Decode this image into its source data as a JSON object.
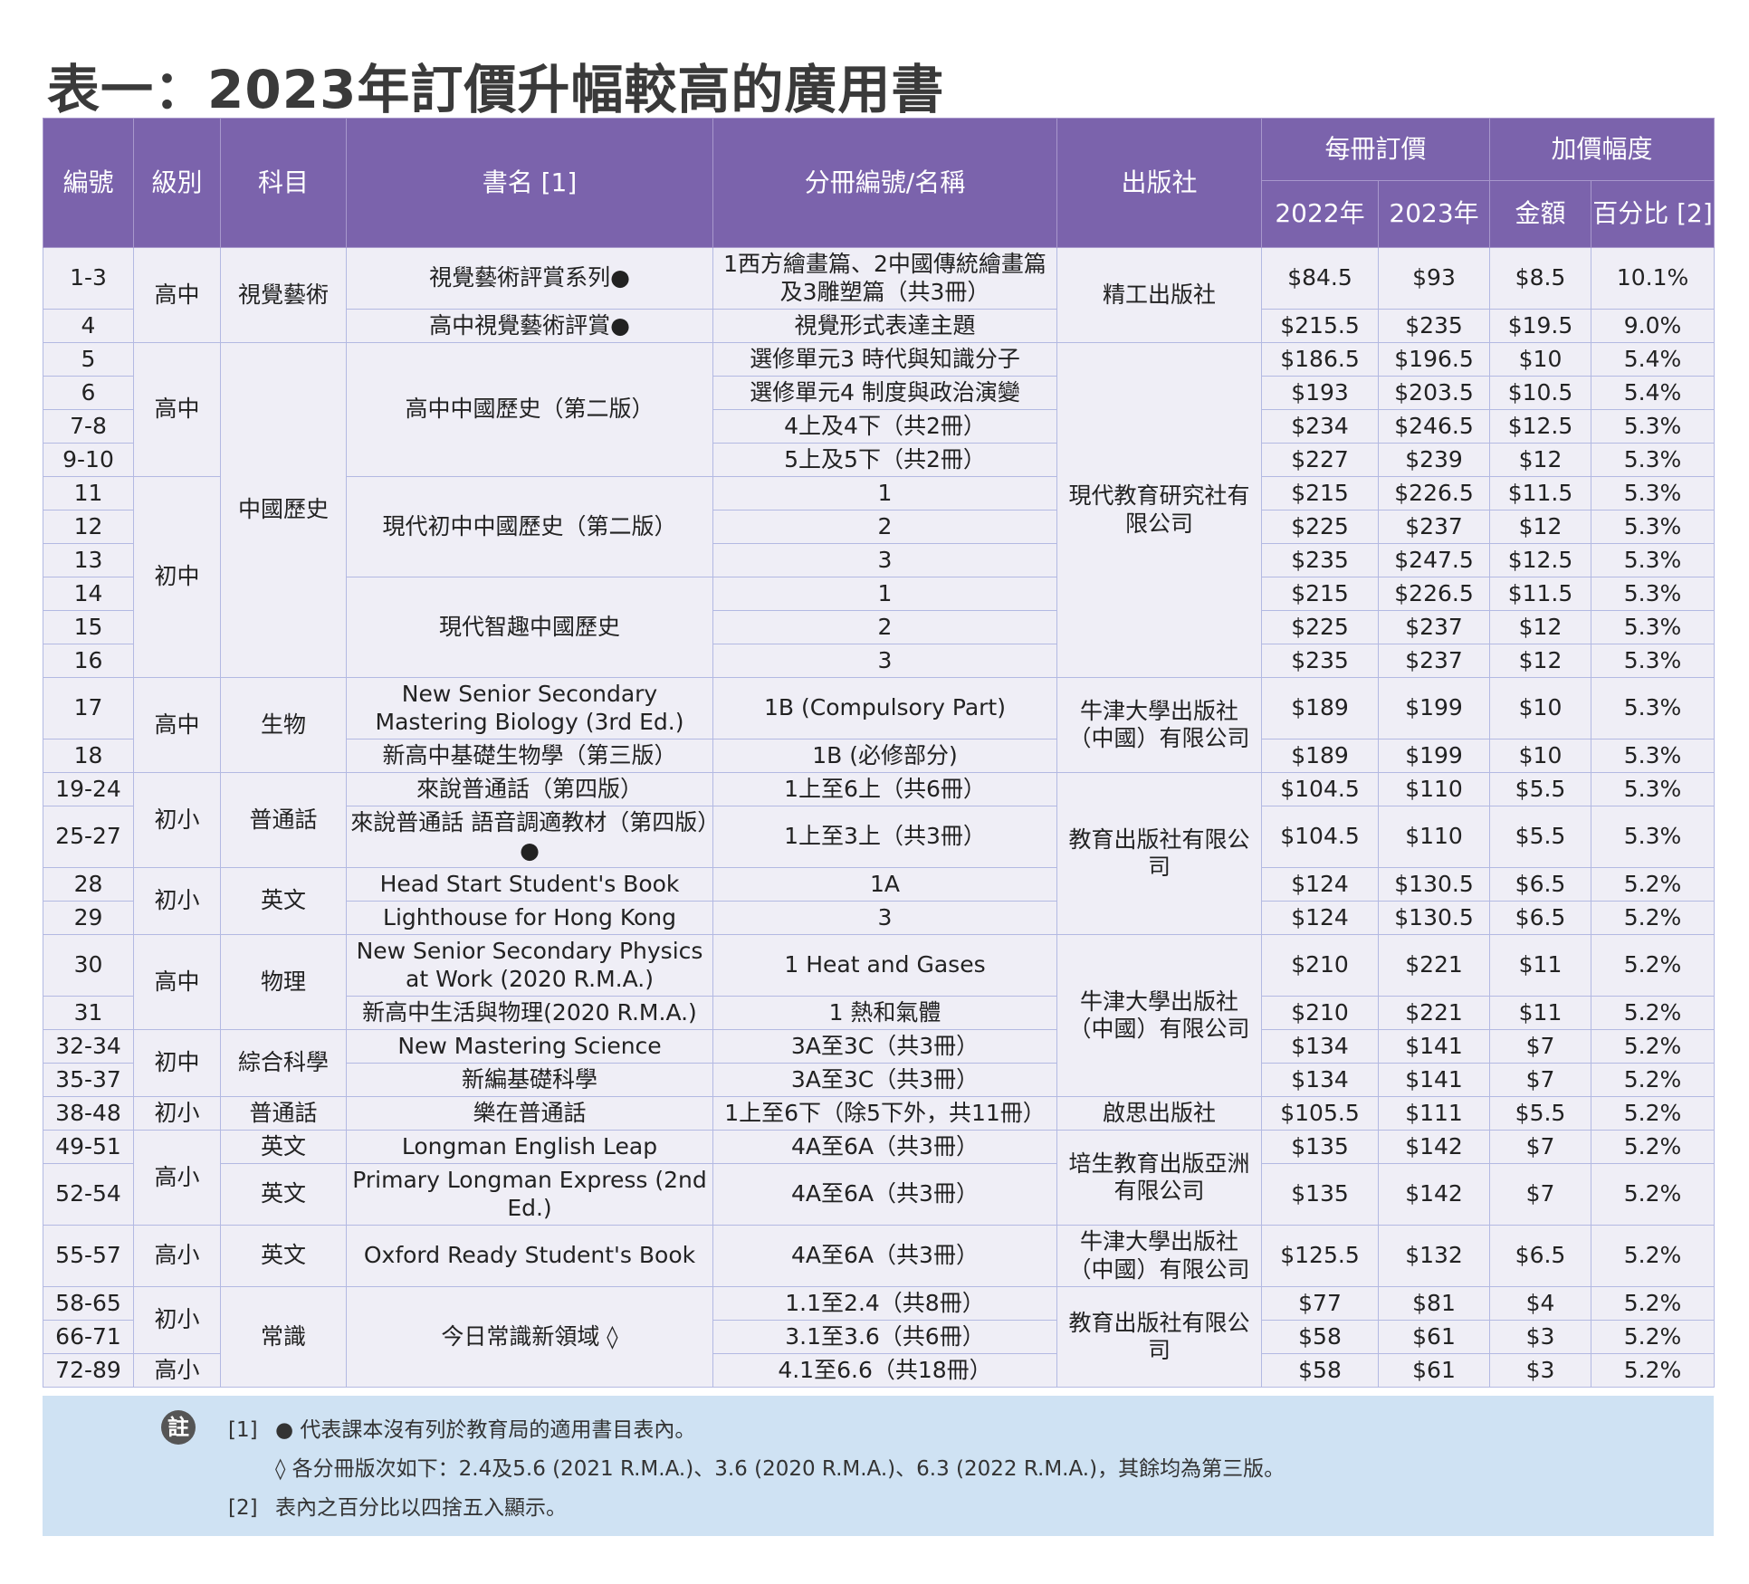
{
  "title": "表一：2023年訂價升幅較高的廣用書",
  "headers": {
    "id": "編號",
    "level": "級別",
    "subject": "科目",
    "book": "書名 [1]",
    "volume": "分冊編號/名稱",
    "publisher": "出版社",
    "price": "每冊訂價",
    "increase": "加價幅度",
    "y2022": "2022年",
    "y2023": "2023年",
    "amount": "金額",
    "percent": "百分比 [2]"
  },
  "rows": [
    {
      "id": "1-3",
      "level": "高中",
      "subject": "視覺藝術",
      "book": "視覺藝術評賞系列●",
      "volume": "1西方繪畫篇、2中國傳統繪畫篇及3雕塑篇（共3冊）",
      "publisher": "精工出版社",
      "p2022": "$84.5",
      "p2023": "$93",
      "amount": "$8.5",
      "percent": "10.1%"
    },
    {
      "id": "4",
      "book": "高中視覺藝術評賞●",
      "volume": "視覺形式表達主題",
      "p2022": "$215.5",
      "p2023": "$235",
      "amount": "$19.5",
      "percent": "9.0%"
    },
    {
      "id": "5",
      "level": "高中",
      "subject": "中國歷史",
      "book": "高中中國歷史（第二版）",
      "volume": "選修單元3 時代與知識分子",
      "publisher": "現代教育研究社有限公司",
      "p2022": "$186.5",
      "p2023": "$196.5",
      "amount": "$10",
      "percent": "5.4%"
    },
    {
      "id": "6",
      "volume": "選修單元4 制度與政治演變",
      "p2022": "$193",
      "p2023": "$203.5",
      "amount": "$10.5",
      "percent": "5.4%"
    },
    {
      "id": "7-8",
      "volume": "4上及4下（共2冊）",
      "p2022": "$234",
      "p2023": "$246.5",
      "amount": "$12.5",
      "percent": "5.3%"
    },
    {
      "id": "9-10",
      "volume": "5上及5下（共2冊）",
      "p2022": "$227",
      "p2023": "$239",
      "amount": "$12",
      "percent": "5.3%"
    },
    {
      "id": "11",
      "level": "初中",
      "book": "現代初中中國歷史（第二版）",
      "volume": "1",
      "p2022": "$215",
      "p2023": "$226.5",
      "amount": "$11.5",
      "percent": "5.3%"
    },
    {
      "id": "12",
      "volume": "2",
      "p2022": "$225",
      "p2023": "$237",
      "amount": "$12",
      "percent": "5.3%"
    },
    {
      "id": "13",
      "volume": "3",
      "p2022": "$235",
      "p2023": "$247.5",
      "amount": "$12.5",
      "percent": "5.3%"
    },
    {
      "id": "14",
      "book": "現代智趣中國歷史",
      "volume": "1",
      "p2022": "$215",
      "p2023": "$226.5",
      "amount": "$11.5",
      "percent": "5.3%"
    },
    {
      "id": "15",
      "volume": "2",
      "p2022": "$225",
      "p2023": "$237",
      "amount": "$12",
      "percent": "5.3%"
    },
    {
      "id": "16",
      "volume": "3",
      "p2022": "$235",
      "p2023": "$237",
      "amount": "$12",
      "percent": "5.3%"
    },
    {
      "id": "17",
      "level": "高中",
      "subject": "生物",
      "book": "New Senior Secondary Mastering Biology (3rd Ed.)",
      "volume": "1B (Compulsory Part)",
      "publisher": "牛津大學出版社（中國）有限公司",
      "p2022": "$189",
      "p2023": "$199",
      "amount": "$10",
      "percent": "5.3%"
    },
    {
      "id": "18",
      "book": "新高中基礎生物學（第三版）",
      "volume": "1B (必修部分)",
      "p2022": "$189",
      "p2023": "$199",
      "amount": "$10",
      "percent": "5.3%"
    },
    {
      "id": "19-24",
      "level": "初小",
      "subject": "普通話",
      "book": "來說普通話（第四版）",
      "volume": "1上至6上（共6冊）",
      "publisher": "教育出版社有限公司",
      "p2022": "$104.5",
      "p2023": "$110",
      "amount": "$5.5",
      "percent": "5.3%"
    },
    {
      "id": "25-27",
      "book": "來說普通話 語音調適教材（第四版）●",
      "volume": "1上至3上（共3冊）",
      "p2022": "$104.5",
      "p2023": "$110",
      "amount": "$5.5",
      "percent": "5.3%"
    },
    {
      "id": "28",
      "level": "初小",
      "subject": "英文",
      "book": "Head Start Student's Book",
      "volume": "1A",
      "p2022": "$124",
      "p2023": "$130.5",
      "amount": "$6.5",
      "percent": "5.2%"
    },
    {
      "id": "29",
      "book": "Lighthouse for Hong Kong",
      "volume": "3",
      "p2022": "$124",
      "p2023": "$130.5",
      "amount": "$6.5",
      "percent": "5.2%"
    },
    {
      "id": "30",
      "level": "高中",
      "subject": "物理",
      "book": "New Senior Secondary Physics at Work (2020 R.M.A.)",
      "volume": "1 Heat and Gases",
      "publisher": "牛津大學出版社（中國）有限公司",
      "p2022": "$210",
      "p2023": "$221",
      "amount": "$11",
      "percent": "5.2%"
    },
    {
      "id": "31",
      "book": "新高中生活與物理(2020 R.M.A.)",
      "volume": "1 熱和氣體",
      "p2022": "$210",
      "p2023": "$221",
      "amount": "$11",
      "percent": "5.2%"
    },
    {
      "id": "32-34",
      "level": "初中",
      "subject": "綜合科學",
      "book": "New Mastering Science",
      "volume": "3A至3C（共3冊）",
      "p2022": "$134",
      "p2023": "$141",
      "amount": "$7",
      "percent": "5.2%"
    },
    {
      "id": "35-37",
      "book": "新編基礎科學",
      "volume": "3A至3C（共3冊）",
      "p2022": "$134",
      "p2023": "$141",
      "amount": "$7",
      "percent": "5.2%"
    },
    {
      "id": "38-48",
      "level": "初小",
      "subject": "普通話",
      "book": "樂在普通話",
      "volume": "1上至6下（除5下外，共11冊）",
      "publisher": "啟思出版社",
      "p2022": "$105.5",
      "p2023": "$111",
      "amount": "$5.5",
      "percent": "5.2%"
    },
    {
      "id": "49-51",
      "level": "高小",
      "subject": "英文",
      "book": "Longman English Leap",
      "volume": "4A至6A（共3冊）",
      "publisher": "培生教育出版亞洲有限公司",
      "p2022": "$135",
      "p2023": "$142",
      "amount": "$7",
      "percent": "5.2%"
    },
    {
      "id": "52-54",
      "subject": "英文",
      "book": "Primary Longman Express (2nd Ed.)",
      "volume": "4A至6A（共3冊）",
      "p2022": "$135",
      "p2023": "$142",
      "amount": "$7",
      "percent": "5.2%"
    },
    {
      "id": "55-57",
      "level": "高小",
      "subject": "英文",
      "book": "Oxford Ready Student's Book",
      "volume": "4A至6A（共3冊）",
      "publisher": "牛津大學出版社（中國）有限公司",
      "p2022": "$125.5",
      "p2023": "$132",
      "amount": "$6.5",
      "percent": "5.2%"
    },
    {
      "id": "58-65",
      "level": "初小",
      "subject": "常識",
      "book": "今日常識新領域 ◊",
      "volume": "1.1至2.4（共8冊）",
      "publisher": "教育出版社有限公司",
      "p2022": "$77",
      "p2023": "$81",
      "amount": "$4",
      "percent": "5.2%"
    },
    {
      "id": "66-71",
      "volume": "3.1至3.6（共6冊）",
      "p2022": "$58",
      "p2023": "$61",
      "amount": "$3",
      "percent": "5.2%"
    },
    {
      "id": "72-89",
      "level": "高小",
      "volume": "4.1至6.6（共18冊）",
      "p2022": "$58",
      "p2023": "$61",
      "amount": "$3",
      "percent": "5.2%"
    }
  ],
  "notes": {
    "icon_label": "註",
    "n1_tag": "[1]",
    "n1_text": "● 代表課本沒有列於教育局的適用書目表內。",
    "n1b_text": "◊ 各分冊版次如下：2.4及5.6 (2021 R.M.A.)、3.6 (2020 R.M.A.)、6.3 (2022 R.M.A.)，其餘均為第三版。",
    "n2_tag": "[2]",
    "n2_text": "表內之百分比以四捨五入顯示。"
  },
  "colors": {
    "header": "#7b63ac",
    "cell": "#efeef6",
    "border": "#b3b9e2",
    "notes_bg": "#cfe2f3"
  }
}
